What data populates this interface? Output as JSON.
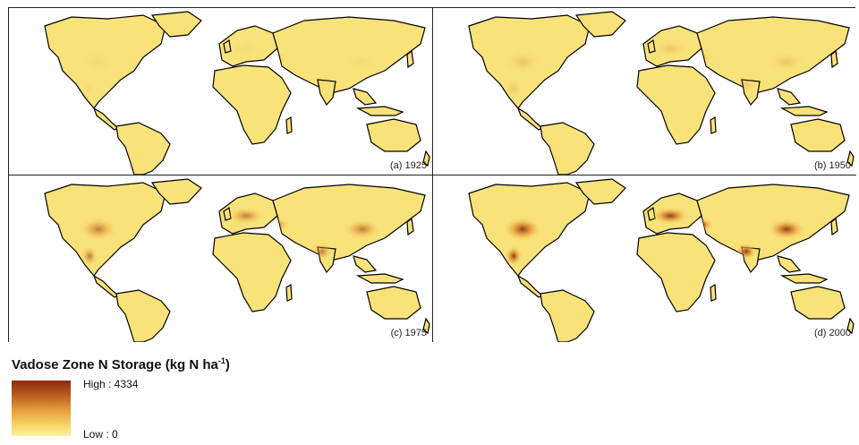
{
  "panels": [
    {
      "label": "(a) 1925",
      "intensity": 0.05
    },
    {
      "label": "(b) 1950",
      "intensity": 0.15
    },
    {
      "label": "(c) 1975",
      "intensity": 0.55
    },
    {
      "label": "(d) 2000",
      "intensity": 0.9
    }
  ],
  "legend": {
    "title": "Vadose Zone N Storage (kg N ha",
    "title_sup": "-1",
    "title_close": ")",
    "high_label": "High : 4334",
    "low_label": "Low : 0",
    "colors": {
      "high": "#8a2c10",
      "mid": "#e8a13c",
      "low": "#fdf0a0",
      "land": "#f9e27a",
      "water": "#ffffff",
      "coast": "#000000"
    }
  }
}
